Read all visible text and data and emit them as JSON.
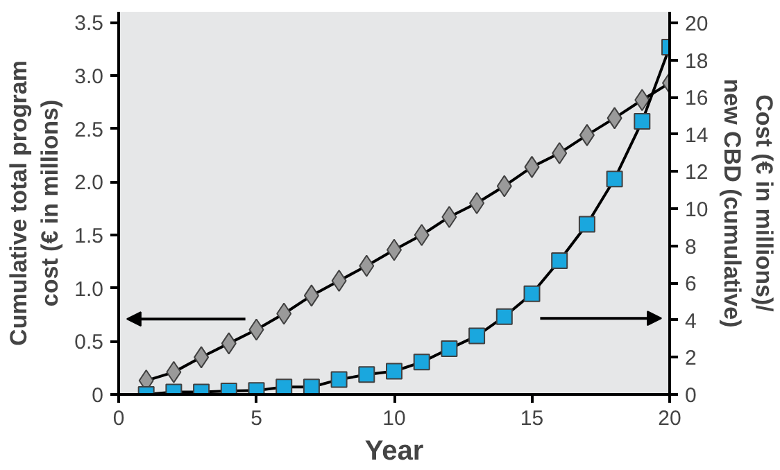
{
  "chart_data": {
    "type": "line",
    "xlabel": "Year",
    "ylabel": "Cumulative total program\ncost (€ in millions)",
    "y2label": "Cost (€ in millions)/\nnew CBD (cumulative)",
    "x": [
      1,
      2,
      3,
      4,
      5,
      6,
      7,
      8,
      9,
      10,
      11,
      12,
      13,
      14,
      15,
      16,
      17,
      18,
      19,
      20
    ],
    "series": [
      {
        "color": "#9a9a9a",
        "marker": "diamond",
        "values": [
          0.13,
          0.21,
          0.35,
          0.48,
          0.61,
          0.76,
          0.93,
          1.07,
          1.21,
          1.36,
          1.5,
          1.67,
          1.8,
          1.96,
          2.14,
          2.27,
          2.44,
          2.6,
          2.77,
          2.93
        ]
      },
      {
        "color": "#1aa7de",
        "marker": "square",
        "axis": "y2",
        "values": [
          0.0,
          0.13,
          0.13,
          0.19,
          0.21,
          0.4,
          0.4,
          0.8,
          1.07,
          1.25,
          1.74,
          2.46,
          3.15,
          4.19,
          5.42,
          7.2,
          9.16,
          11.6,
          14.7,
          18.7
        ]
      }
    ],
    "xlim": [
      0,
      20
    ],
    "xticks": [
      0,
      5,
      10,
      15,
      20
    ],
    "ylim": [
      0,
      3.6
    ],
    "yticks": [
      0,
      0.5,
      {
        "value": 1,
        "label": "1.0"
      },
      1.5,
      {
        "value": 2,
        "label": "2.0"
      },
      2.5,
      {
        "value": 3,
        "label": "3.0"
      },
      3.5
    ],
    "y2lim": [
      0,
      20.6
    ],
    "y2ticks": [
      0,
      2,
      4,
      6,
      8,
      10,
      12,
      14,
      16,
      18,
      20
    ]
  }
}
